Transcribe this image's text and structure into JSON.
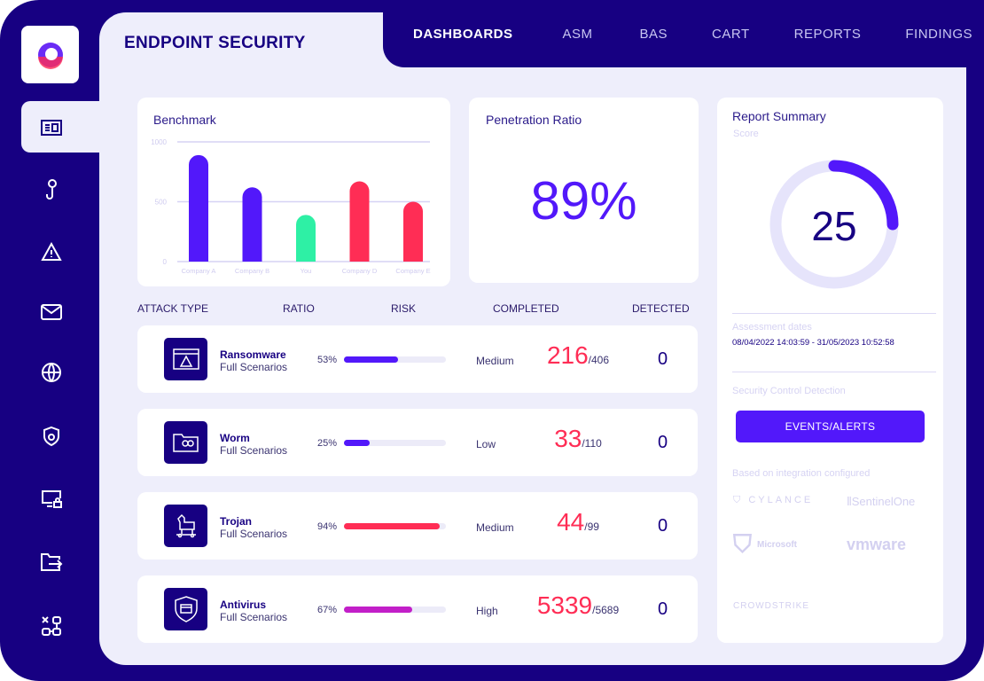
{
  "app": {
    "title": "ENDPOINT SECURITY"
  },
  "nav": {
    "items": [
      {
        "label": "DASHBOARDS",
        "active": true
      },
      {
        "label": "ASM"
      },
      {
        "label": "BAS"
      },
      {
        "label": "CART"
      },
      {
        "label": "REPORTS"
      },
      {
        "label": "FINDINGS"
      }
    ]
  },
  "sidebar": {
    "items": [
      "dashboard-icon",
      "hook-icon",
      "warning-icon",
      "mail-icon",
      "globe-icon",
      "shield-fire-icon",
      "monitor-lock-icon",
      "folder-export-icon",
      "network-icon"
    ]
  },
  "benchmark": {
    "title": "Benchmark"
  },
  "chart_data": {
    "type": "bar",
    "title": "Benchmark",
    "categories": [
      "Company A",
      "Company B",
      "You",
      "Company D",
      "Company E"
    ],
    "values": [
      890,
      620,
      390,
      670,
      500
    ],
    "colors": [
      "#5218fa",
      "#5218fa",
      "#2ef0a5",
      "#ff2d55",
      "#ff2d55"
    ],
    "yticks": [
      0,
      500,
      1000
    ],
    "ylim": [
      0,
      1000
    ],
    "grid": true
  },
  "penetration": {
    "title": "Penetration Ratio",
    "value": "89%"
  },
  "table": {
    "headers": [
      "ATTACK TYPE",
      "RATIO",
      "RISK",
      "COMPLETED",
      "DETECTED"
    ],
    "rows": [
      {
        "name": "Ransomware",
        "sub": "Full Scenarios",
        "ratio": "53%",
        "ratio_value": 53,
        "bar_color": "#5218fa",
        "risk": "Medium",
        "completed": "216",
        "total": "/406",
        "detected": "0",
        "icon": "browser-warning-icon"
      },
      {
        "name": "Worm",
        "sub": "Full Scenarios",
        "ratio": "25%",
        "ratio_value": 25,
        "bar_color": "#5218fa",
        "risk": "Low",
        "completed": "33",
        "total": "/110",
        "detected": "0",
        "icon": "folder-worm-icon"
      },
      {
        "name": "Trojan",
        "sub": "Full Scenarios",
        "ratio": "94%",
        "ratio_value": 94,
        "bar_color": "#ff2d55",
        "risk": "Medium",
        "completed": "44",
        "total": "/99",
        "detected": "0",
        "icon": "trojan-horse-icon"
      },
      {
        "name": "Antivirus",
        "sub": "Full Scenarios",
        "ratio": "67%",
        "ratio_value": 67,
        "bar_color": "#c21fc8",
        "risk": "High",
        "completed": "5339",
        "total": "/5689",
        "detected": "0",
        "icon": "shield-window-icon"
      }
    ]
  },
  "report": {
    "title": "Report Summary",
    "score_label": "Score",
    "score": "25",
    "score_fraction": 0.25,
    "dates_label": "Assessment dates",
    "dates": "08/04/2022 14:03:59 - 31/05/2023 10:52:58",
    "detection_label": "Security Control Detection",
    "button": "EVENTS/ALERTS",
    "integration_label": "Based on integration configured",
    "integrations": [
      "CYLANCE",
      "SentinelOne",
      "Microsoft",
      "vmware",
      "CROWDSTRIKE"
    ]
  }
}
